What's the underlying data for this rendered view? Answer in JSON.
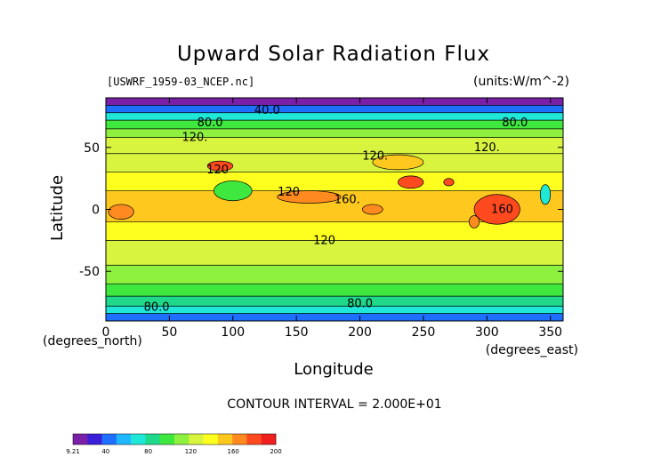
{
  "chart_data": {
    "type": "heatmap",
    "title": "Upward Solar Radiation Flux",
    "subtitle_left": "[USWRF_1959-03_NCEP.nc]",
    "subtitle_right": "(units:W/m^-2)",
    "xlabel": "Longitude",
    "xunit": "(degrees_east)",
    "ylabel": "Latitude",
    "yunit": "(degrees_north)",
    "xlim": [
      0,
      360
    ],
    "ylim": [
      -90,
      90
    ],
    "x_ticks": [
      0,
      50,
      100,
      150,
      200,
      250,
      300,
      350
    ],
    "y_ticks": [
      50,
      0,
      -50
    ],
    "contour_interval_text": "CONTOUR INTERVAL = 2.000E+01",
    "contour_labels": [
      {
        "text": "40.0",
        "lon": 127,
        "lat": 80
      },
      {
        "text": "80.0",
        "lon": 82,
        "lat": 70
      },
      {
        "text": "80.0",
        "lon": 322,
        "lat": 70
      },
      {
        "text": "120.",
        "lon": 70,
        "lat": 58
      },
      {
        "text": "120.",
        "lon": 212,
        "lat": 43
      },
      {
        "text": "120.",
        "lon": 300,
        "lat": 50
      },
      {
        "text": "120",
        "lon": 88,
        "lat": 32
      },
      {
        "text": "120",
        "lon": 144,
        "lat": 14
      },
      {
        "text": "160.",
        "lon": 190,
        "lat": 8
      },
      {
        "text": "160",
        "lon": 312,
        "lat": 0
      },
      {
        "text": "120",
        "lon": 172,
        "lat": -25
      },
      {
        "text": "80.0",
        "lon": 40,
        "lat": -79
      },
      {
        "text": "80.0",
        "lon": 200,
        "lat": -76
      }
    ],
    "colorbar": {
      "min_label": "9.21",
      "labels": [
        "9.21",
        "40",
        "80",
        "120",
        "160",
        "200"
      ],
      "values": [
        9.21,
        40,
        80,
        120,
        160,
        200
      ],
      "colors": [
        "#7a1fa8",
        "#3a1ed8",
        "#1f6fff",
        "#1fb8ff",
        "#1fe8d8",
        "#1fd88a",
        "#3fe83f",
        "#8ef03f",
        "#d8f43f",
        "#ffff1f",
        "#ffc81f",
        "#ff8a1f",
        "#ff4a1f",
        "#f01f1f"
      ]
    },
    "bands": [
      {
        "lat_from": 90,
        "lat_to": 84,
        "value": 20
      },
      {
        "lat_from": 84,
        "lat_to": 78,
        "value": 50
      },
      {
        "lat_from": 78,
        "lat_to": 72,
        "value": 75
      },
      {
        "lat_from": 72,
        "lat_to": 65,
        "value": 95
      },
      {
        "lat_from": 65,
        "lat_to": 58,
        "value": 110
      },
      {
        "lat_from": 58,
        "lat_to": 45,
        "value": 125
      },
      {
        "lat_from": 45,
        "lat_to": 30,
        "value": 130
      },
      {
        "lat_from": 30,
        "lat_to": 15,
        "value": 135
      },
      {
        "lat_from": 15,
        "lat_to": -10,
        "value": 150
      },
      {
        "lat_from": -10,
        "lat_to": -25,
        "value": 135
      },
      {
        "lat_from": -25,
        "lat_to": -45,
        "value": 125
      },
      {
        "lat_from": -45,
        "lat_to": -60,
        "value": 115
      },
      {
        "lat_from": -60,
        "lat_to": -70,
        "value": 100
      },
      {
        "lat_from": -70,
        "lat_to": -78,
        "value": 85
      },
      {
        "lat_from": -78,
        "lat_to": -84,
        "value": 70
      },
      {
        "lat_from": -84,
        "lat_to": -90,
        "value": 50
      }
    ],
    "hotspots": [
      {
        "lon": 90,
        "lat": 35,
        "rlon": 10,
        "rlat": 4,
        "value": 185
      },
      {
        "lon": 240,
        "lat": 22,
        "rlon": 10,
        "rlat": 5,
        "value": 180
      },
      {
        "lon": 270,
        "lat": 22,
        "rlon": 4,
        "rlat": 3,
        "value": 175
      },
      {
        "lon": 308,
        "lat": 0,
        "rlon": 18,
        "rlat": 12,
        "value": 185
      },
      {
        "lon": 12,
        "lat": -2,
        "rlon": 10,
        "rlat": 6,
        "value": 170
      },
      {
        "lon": 160,
        "lat": 10,
        "rlon": 25,
        "rlat": 5,
        "value": 165
      },
      {
        "lon": 210,
        "lat": 0,
        "rlon": 8,
        "rlat": 4,
        "value": 170
      },
      {
        "lon": 230,
        "lat": 38,
        "rlon": 20,
        "rlat": 6,
        "value": 155
      },
      {
        "lon": 100,
        "lat": 15,
        "rlon": 15,
        "rlat": 8,
        "value": 95
      },
      {
        "lon": 346,
        "lat": 12,
        "rlon": 4,
        "rlat": 8,
        "value": 70
      },
      {
        "lon": 290,
        "lat": -10,
        "rlon": 4,
        "rlat": 5,
        "value": 170
      }
    ]
  }
}
